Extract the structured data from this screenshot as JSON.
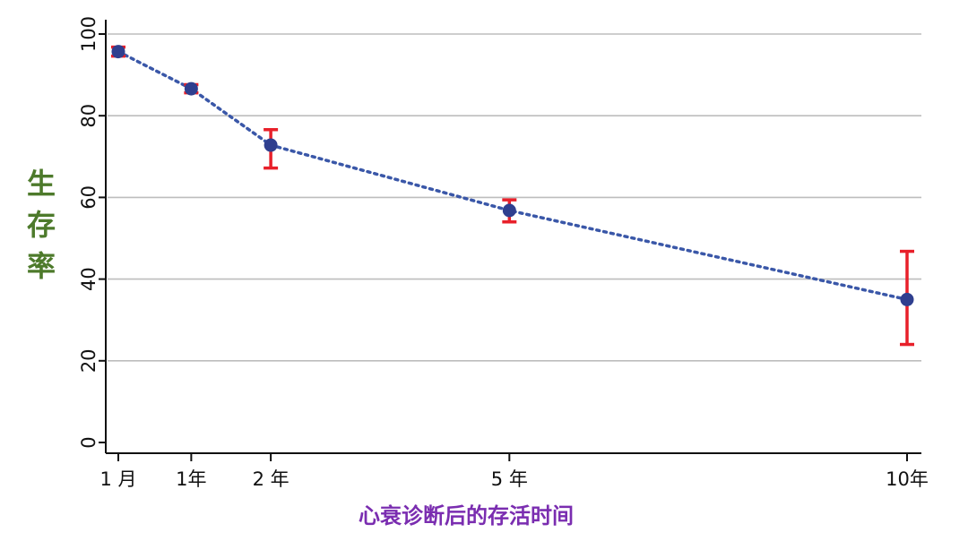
{
  "chart_data": {
    "type": "line",
    "title": "",
    "xlabel": "心衰诊断后的存活时间",
    "ylabel_chars": [
      "生",
      "存",
      "率"
    ],
    "x_positions": [
      0.083,
      1,
      2,
      5,
      10
    ],
    "categories": [
      "1 月",
      "1年",
      "2 年",
      "5 年",
      "10年"
    ],
    "series": [
      {
        "values": [
          95.7,
          86.6,
          72.8,
          56.8,
          35.0
        ],
        "ci_low": [
          94.6,
          85.6,
          67.2,
          54.0,
          24.0
        ],
        "ci_high": [
          96.8,
          87.6,
          76.6,
          59.4,
          46.8
        ]
      }
    ],
    "ylim": [
      0,
      100
    ],
    "yticks": [
      "0",
      "20",
      "40",
      "60",
      "80",
      "100"
    ],
    "grid": true,
    "colors": {
      "line": "#3a57a8",
      "marker": "#2f3f8f",
      "error_bar": "#e8202a",
      "grid": "#bdbdbd",
      "axis": "#111111",
      "xlabel": "#7a2db0",
      "ylabel": "#4d7a2b"
    }
  }
}
